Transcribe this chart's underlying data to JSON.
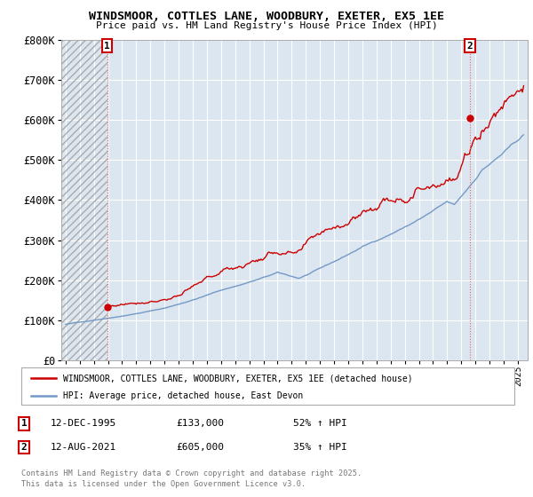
{
  "title": "WINDSMOOR, COTTLES LANE, WOODBURY, EXETER, EX5 1EE",
  "subtitle": "Price paid vs. HM Land Registry's House Price Index (HPI)",
  "background_color": "#ffffff",
  "plot_bg_color": "#dce6f0",
  "grid_color": "#ffffff",
  "red_line_color": "#cc0000",
  "blue_line_color": "#7399c6",
  "ylim": [
    0,
    800000
  ],
  "yticks": [
    0,
    100000,
    200000,
    300000,
    400000,
    500000,
    600000,
    700000,
    800000
  ],
  "ytick_labels": [
    "£0",
    "£100K",
    "£200K",
    "£300K",
    "£400K",
    "£500K",
    "£600K",
    "£700K",
    "£800K"
  ],
  "xstart_year": 1993,
  "xend_year": 2025,
  "purchase1_year": 1995.95,
  "purchase1_price": 133000,
  "purchase1_label": "1",
  "purchase1_date": "12-DEC-1995",
  "purchase1_pct": "52% ↑ HPI",
  "purchase2_year": 2021.62,
  "purchase2_price": 605000,
  "purchase2_label": "2",
  "purchase2_date": "12-AUG-2021",
  "purchase2_pct": "35% ↑ HPI",
  "legend_entry1": "WINDSMOOR, COTTLES LANE, WOODBURY, EXETER, EX5 1EE (detached house)",
  "legend_entry2": "HPI: Average price, detached house, East Devon",
  "footer1": "Contains HM Land Registry data © Crown copyright and database right 2025.",
  "footer2": "This data is licensed under the Open Government Licence v3.0.",
  "hatch_xstart": 1993,
  "hatch_xend": 1995.95
}
